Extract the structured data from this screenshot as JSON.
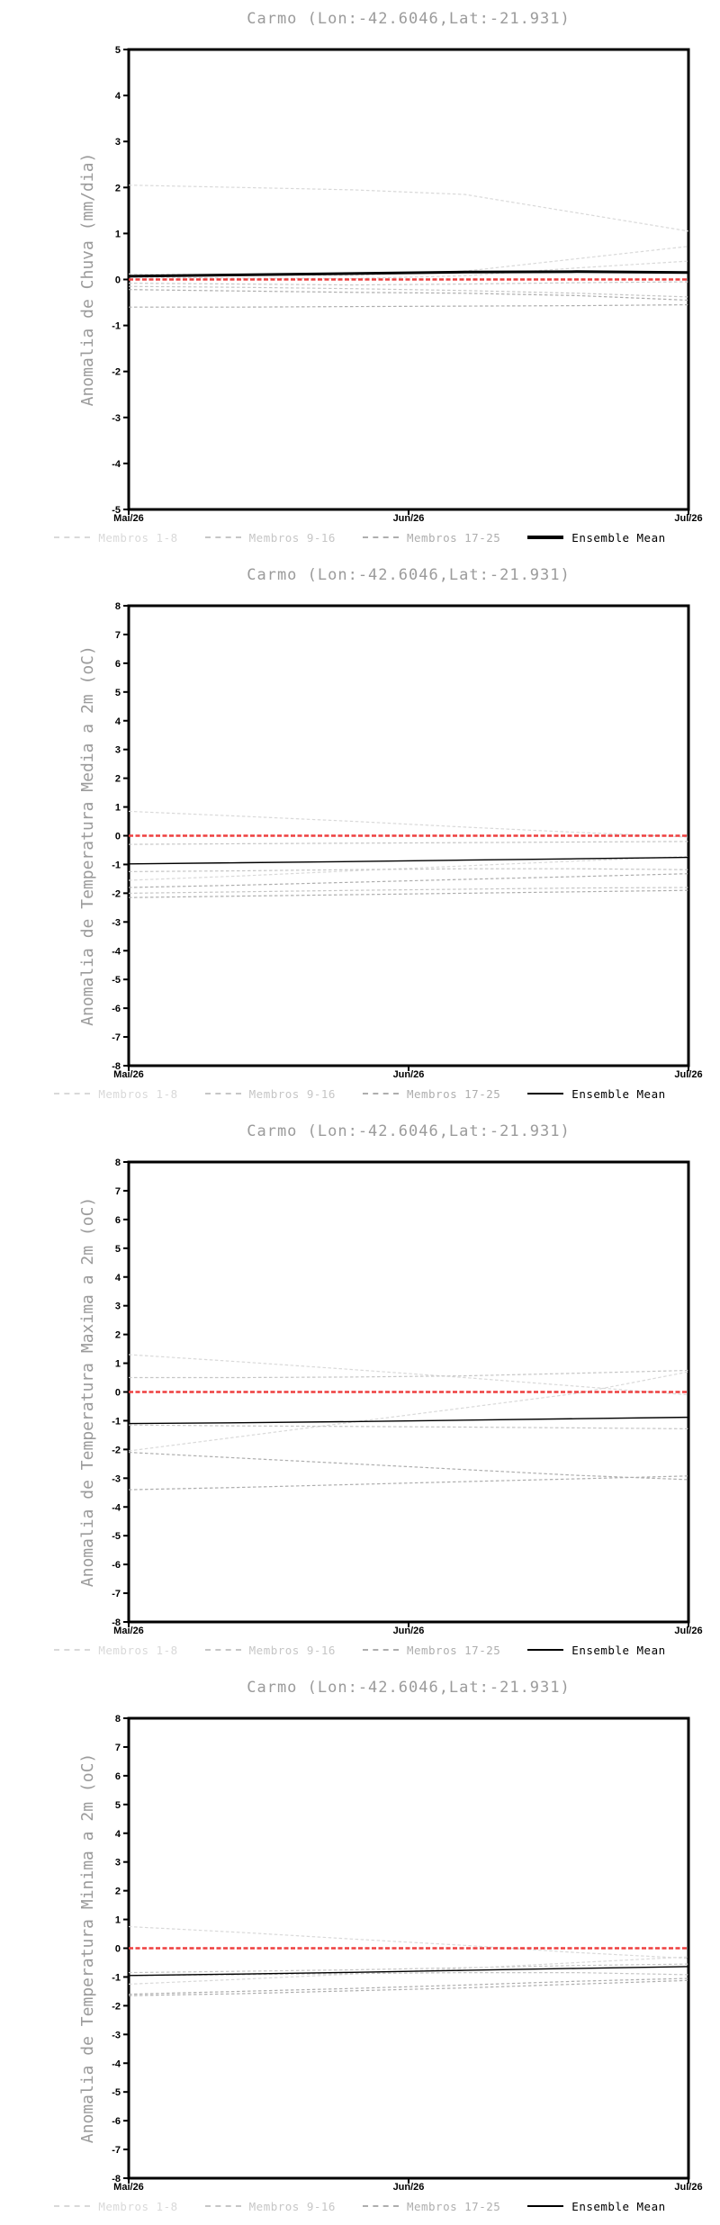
{
  "page": {
    "background": "#ffffff"
  },
  "legend": {
    "position": "bottom",
    "group_colors": {
      "1": "#d9d9d9",
      "2": "#c6c6c6",
      "3": "#aeaeae"
    },
    "items": [
      {
        "label": "Membros 1-8",
        "color": "#d9d9d9",
        "line_style": "dashed"
      },
      {
        "label": "Membros 9-16",
        "color": "#c6c6c6",
        "line_style": "dashed"
      },
      {
        "label": "Membros 17-25",
        "color": "#aeaeae",
        "line_style": "dashed"
      },
      {
        "label": "Ensemble Mean",
        "color": "#000000",
        "line_style": "solid"
      }
    ]
  },
  "chart_data": [
    {
      "type": "line",
      "title": "Carmo (Lon:-42.6046,Lat:-21.931)",
      "ylabel": "Anomalia de Chuva (mm/dia)",
      "xlabel": "",
      "ylim": [
        -5,
        5
      ],
      "yticks": [
        5,
        4,
        3,
        2,
        1,
        0,
        -1,
        -2,
        -3,
        -4,
        -5
      ],
      "xticklabels": [
        "Mai/26",
        "Jun/26",
        "Jul/26"
      ],
      "x": [
        0,
        0.2,
        0.4,
        0.6,
        0.8,
        1
      ],
      "grid": false,
      "legend_position": "bottom",
      "reference_line": {
        "y": 0,
        "color": "#ee3f3f"
      },
      "mean_line_width": 3,
      "series": [
        {
          "name": "membro-a",
          "role": "member",
          "group": 1,
          "values": [
            2.05,
            2.0,
            1.95,
            1.85,
            1.45,
            1.05
          ]
        },
        {
          "name": "membro-b",
          "role": "member",
          "group": 1,
          "values": [
            0.12,
            0.1,
            0.09,
            0.18,
            0.45,
            0.72
          ]
        },
        {
          "name": "membro-c",
          "role": "member",
          "group": 1,
          "values": [
            0.05,
            0.03,
            0.02,
            0.08,
            0.25,
            0.4
          ]
        },
        {
          "name": "membro-d",
          "role": "member",
          "group": 2,
          "values": [
            -0.08,
            -0.1,
            -0.12,
            -0.1,
            -0.07,
            -0.05
          ]
        },
        {
          "name": "membro-e",
          "role": "member",
          "group": 2,
          "values": [
            -0.15,
            -0.17,
            -0.2,
            -0.24,
            -0.3,
            -0.38
          ]
        },
        {
          "name": "membro-f",
          "role": "member",
          "group": 3,
          "values": [
            -0.22,
            -0.25,
            -0.28,
            -0.3,
            -0.35,
            -0.45
          ]
        },
        {
          "name": "membro-g",
          "role": "member",
          "group": 3,
          "values": [
            -0.6,
            -0.6,
            -0.59,
            -0.58,
            -0.57,
            -0.55
          ]
        },
        {
          "name": "Ensemble Mean",
          "role": "mean",
          "values": [
            0.07,
            0.1,
            0.13,
            0.16,
            0.17,
            0.15
          ]
        }
      ]
    },
    {
      "type": "line",
      "title": "Carmo (Lon:-42.6046,Lat:-21.931)",
      "ylabel": "Anomalia de Temperatura Media a 2m (oC)",
      "xlabel": "",
      "ylim": [
        -8,
        8
      ],
      "yticks": [
        8,
        7,
        6,
        5,
        4,
        3,
        2,
        1,
        0,
        -1,
        -2,
        -3,
        -4,
        -5,
        -6,
        -7,
        -8
      ],
      "xticklabels": [
        "Mai/26",
        "Jun/26",
        "Jul/26"
      ],
      "x": [
        0,
        0.2,
        0.4,
        0.6,
        0.8,
        1
      ],
      "grid": false,
      "legend_position": "bottom",
      "reference_line": {
        "y": 0,
        "color": "#ee3f3f"
      },
      "mean_line_width": 1.4,
      "series": [
        {
          "name": "membro-a",
          "role": "member",
          "group": 1,
          "values": [
            0.85,
            0.68,
            0.5,
            0.3,
            0.12,
            -0.05
          ]
        },
        {
          "name": "membro-b",
          "role": "member",
          "group": 2,
          "values": [
            -0.3,
            -0.28,
            -0.26,
            -0.24,
            -0.22,
            -0.2
          ]
        },
        {
          "name": "membro-c",
          "role": "member",
          "group": 1,
          "values": [
            -1.55,
            -1.4,
            -1.22,
            -1.05,
            -0.88,
            -0.72
          ]
        },
        {
          "name": "membro-d",
          "role": "member",
          "group": 2,
          "values": [
            -1.25,
            -1.22,
            -1.18,
            -1.15,
            -1.15,
            -1.18
          ]
        },
        {
          "name": "membro-e",
          "role": "member",
          "group": 3,
          "values": [
            -1.8,
            -1.72,
            -1.62,
            -1.52,
            -1.42,
            -1.32
          ]
        },
        {
          "name": "membro-f",
          "role": "member",
          "group": 2,
          "values": [
            -2.0,
            -1.95,
            -1.9,
            -1.86,
            -1.82,
            -1.8
          ]
        },
        {
          "name": "membro-g",
          "role": "member",
          "group": 3,
          "values": [
            -2.15,
            -2.1,
            -2.05,
            -2.0,
            -1.95,
            -1.9
          ]
        },
        {
          "name": "Ensemble Mean",
          "role": "mean",
          "values": [
            -0.98,
            -0.94,
            -0.9,
            -0.85,
            -0.8,
            -0.75
          ]
        }
      ]
    },
    {
      "type": "line",
      "title": "Carmo (Lon:-42.6046,Lat:-21.931)",
      "ylabel": "Anomalia de Temperatura Maxima a 2m (oC)",
      "xlabel": "",
      "ylim": [
        -8,
        8
      ],
      "yticks": [
        8,
        7,
        6,
        5,
        4,
        3,
        2,
        1,
        0,
        -1,
        -2,
        -3,
        -4,
        -5,
        -6,
        -7,
        -8
      ],
      "xticklabels": [
        "Mai/26",
        "Jun/26",
        "Jul/26"
      ],
      "x": [
        0,
        0.2,
        0.4,
        0.6,
        0.8,
        1
      ],
      "grid": false,
      "legend_position": "bottom",
      "reference_line": {
        "y": 0,
        "color": "#ee3f3f"
      },
      "mean_line_width": 1.4,
      "series": [
        {
          "name": "membro-a",
          "role": "member",
          "group": 1,
          "values": [
            1.3,
            1.05,
            0.78,
            0.5,
            0.2,
            -0.1
          ]
        },
        {
          "name": "membro-b",
          "role": "member",
          "group": 2,
          "values": [
            0.5,
            0.5,
            0.52,
            0.56,
            0.65,
            0.75
          ]
        },
        {
          "name": "membro-c",
          "role": "member",
          "group": 1,
          "values": [
            -2.05,
            -1.55,
            -1.05,
            -0.55,
            -0.05,
            0.7
          ]
        },
        {
          "name": "membro-d",
          "role": "member",
          "group": 2,
          "values": [
            -1.15,
            -1.18,
            -1.2,
            -1.22,
            -1.25,
            -1.28
          ]
        },
        {
          "name": "membro-e",
          "role": "member",
          "group": 3,
          "values": [
            -2.1,
            -2.3,
            -2.5,
            -2.7,
            -2.9,
            -3.05
          ]
        },
        {
          "name": "membro-f",
          "role": "member",
          "group": 3,
          "values": [
            -3.4,
            -3.32,
            -3.22,
            -3.12,
            -3.02,
            -2.92
          ]
        },
        {
          "name": "Ensemble Mean",
          "role": "mean",
          "values": [
            -1.1,
            -1.07,
            -1.03,
            -0.98,
            -0.93,
            -0.88
          ]
        }
      ]
    },
    {
      "type": "line",
      "title": "Carmo (Lon:-42.6046,Lat:-21.931)",
      "ylabel": "Anomalia de Temperatura Minima a 2m (oC)",
      "xlabel": "",
      "ylim": [
        -8,
        8
      ],
      "yticks": [
        8,
        7,
        6,
        5,
        4,
        3,
        2,
        1,
        0,
        -1,
        -2,
        -3,
        -4,
        -5,
        -6,
        -7,
        -8
      ],
      "xticklabels": [
        "Mai/26",
        "Jun/26",
        "Jul/26"
      ],
      "x": [
        0,
        0.2,
        0.4,
        0.6,
        0.8,
        1
      ],
      "grid": false,
      "legend_position": "bottom",
      "reference_line": {
        "y": 0,
        "color": "#ee3f3f"
      },
      "mean_line_width": 1.4,
      "series": [
        {
          "name": "membro-a",
          "role": "member",
          "group": 1,
          "values": [
            0.75,
            0.55,
            0.32,
            0.1,
            -0.15,
            -0.35
          ]
        },
        {
          "name": "membro-b",
          "role": "member",
          "group": 2,
          "values": [
            -0.85,
            -0.8,
            -0.75,
            -0.68,
            -0.6,
            -0.55
          ]
        },
        {
          "name": "membro-c",
          "role": "member",
          "group": 1,
          "values": [
            -1.25,
            -1.08,
            -0.9,
            -0.7,
            -0.5,
            -0.3
          ]
        },
        {
          "name": "membro-d",
          "role": "member",
          "group": 2,
          "values": [
            -0.95,
            -0.92,
            -0.88,
            -0.85,
            -0.85,
            -0.92
          ]
        },
        {
          "name": "membro-e",
          "role": "member",
          "group": 3,
          "values": [
            -1.6,
            -1.5,
            -1.4,
            -1.28,
            -1.15,
            -1.05
          ]
        },
        {
          "name": "membro-f",
          "role": "member",
          "group": 3,
          "values": [
            -1.65,
            -1.58,
            -1.48,
            -1.38,
            -1.25,
            -1.12
          ]
        },
        {
          "name": "Ensemble Mean",
          "role": "mean",
          "values": [
            -0.95,
            -0.9,
            -0.84,
            -0.77,
            -0.7,
            -0.64
          ]
        }
      ]
    }
  ]
}
